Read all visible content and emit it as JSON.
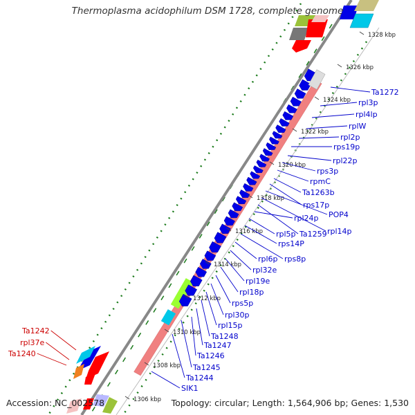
{
  "title": "Thermoplasma acidophilum DSM 1728, complete genome",
  "accession": "Accession: NC_002578",
  "topology": "Topology: circular; Length: 1,564,906 bp; Genes: 1,530",
  "ticks": [
    "1306 kbp",
    "1308 kbp",
    "1310 kbp",
    "1312 kbp",
    "1314 kbp",
    "1316 kbp",
    "1318 kbp",
    "1320 kbp",
    "1322 kbp",
    "1324 kbp",
    "1326 kbp",
    "1328 kbp"
  ],
  "blue_labels": [
    "Ta1272",
    "rpl3p",
    "rpl4lp",
    "rplW",
    "rpl2p",
    "rps19p",
    "rpl22p",
    "rps3p",
    "rpmC",
    "Ta1263b",
    "rps17p",
    "POP4",
    "rpl14p",
    "Ta1259",
    "rpl24p",
    "rpl5p",
    "rps14P",
    "rps8p",
    "rpl6p",
    "rpl32e",
    "rpl19e",
    "rpl18p",
    "rps5p",
    "rpl30p",
    "rpl15p",
    "Ta1248",
    "Ta1247",
    "Ta1246",
    "Ta1245",
    "Ta1244",
    "SIK1"
  ],
  "red_labels": [
    "Ta1242",
    "rpl37e",
    "Ta1240"
  ],
  "colors": {
    "cds_forward": "#0000e6",
    "cds_reverse": "#ff0000",
    "operon": "#f08080",
    "highlight_green": "#9aff33",
    "highlight_cyan": "#00c8e8",
    "gray_feature": "#777777",
    "backbone": "#888888",
    "gc_skew": "#1a7a1a",
    "label_blue": "#0000cc",
    "label_red": "#cc0000"
  }
}
